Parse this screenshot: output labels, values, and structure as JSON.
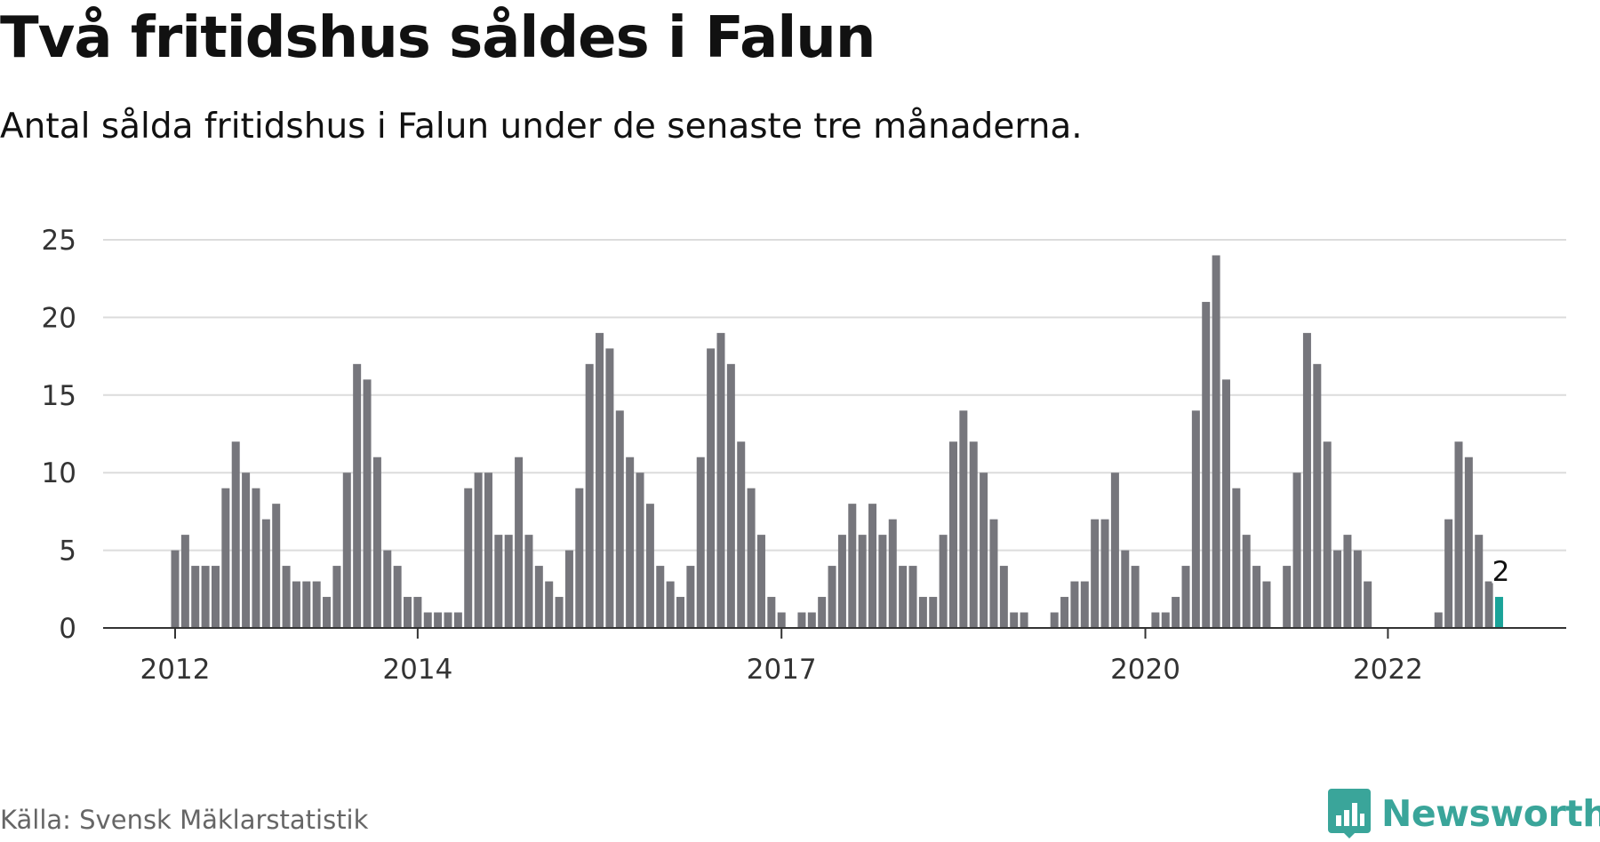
{
  "header": {
    "title": "Två fritidshus såldes i Falun",
    "subtitle": "Antal sålda fritidshus i Falun under de senaste tre månaderna."
  },
  "footer": {
    "source": "Källa: Svensk Mäklarstatistik",
    "brand": "Newsworthy",
    "brand_icon": "newsworthy-logo-icon"
  },
  "colors": {
    "bar": "#76767c",
    "highlight": "#1aa399",
    "grid": "#dcdcdc",
    "axis": "#333333",
    "brand": "#3aa59a"
  },
  "chart_data": {
    "type": "bar",
    "title": "Två fritidshus såldes i Falun",
    "subtitle": "Antal sålda fritidshus i Falun under de senaste tre månaderna.",
    "start": "2012-01",
    "frequency": "monthly",
    "x_tick_labels": [
      "2012",
      "2014",
      "2017",
      "2020",
      "2022"
    ],
    "x_tick_months": [
      "2012-01",
      "2014-01",
      "2017-01",
      "2020-01",
      "2022-01"
    ],
    "values": [
      5,
      6,
      4,
      4,
      4,
      9,
      12,
      10,
      9,
      7,
      8,
      4,
      3,
      3,
      3,
      2,
      4,
      10,
      17,
      16,
      11,
      5,
      4,
      2,
      2,
      1,
      1,
      1,
      1,
      9,
      10,
      10,
      6,
      6,
      11,
      6,
      4,
      3,
      2,
      5,
      9,
      17,
      19,
      18,
      14,
      11,
      10,
      8,
      4,
      3,
      2,
      4,
      11,
      18,
      19,
      17,
      12,
      9,
      6,
      2,
      1,
      0,
      1,
      1,
      2,
      4,
      6,
      8,
      6,
      8,
      6,
      7,
      4,
      4,
      2,
      2,
      6,
      12,
      14,
      12,
      10,
      7,
      4,
      1,
      1,
      0,
      0,
      1,
      2,
      3,
      3,
      7,
      7,
      10,
      5,
      4,
      0,
      1,
      1,
      2,
      4,
      14,
      21,
      24,
      16,
      9,
      6,
      4,
      3,
      0,
      4,
      10,
      19,
      17,
      12,
      5,
      6,
      5,
      3,
      0,
      0,
      0,
      0,
      0,
      0,
      1,
      7,
      12,
      11,
      6,
      3,
      2
    ],
    "highlight_last": true,
    "last_value_label": "2",
    "y_ticks": [
      0,
      5,
      10,
      15,
      20,
      25
    ],
    "ylim": [
      0,
      25
    ],
    "grid": true,
    "legend": "none"
  }
}
